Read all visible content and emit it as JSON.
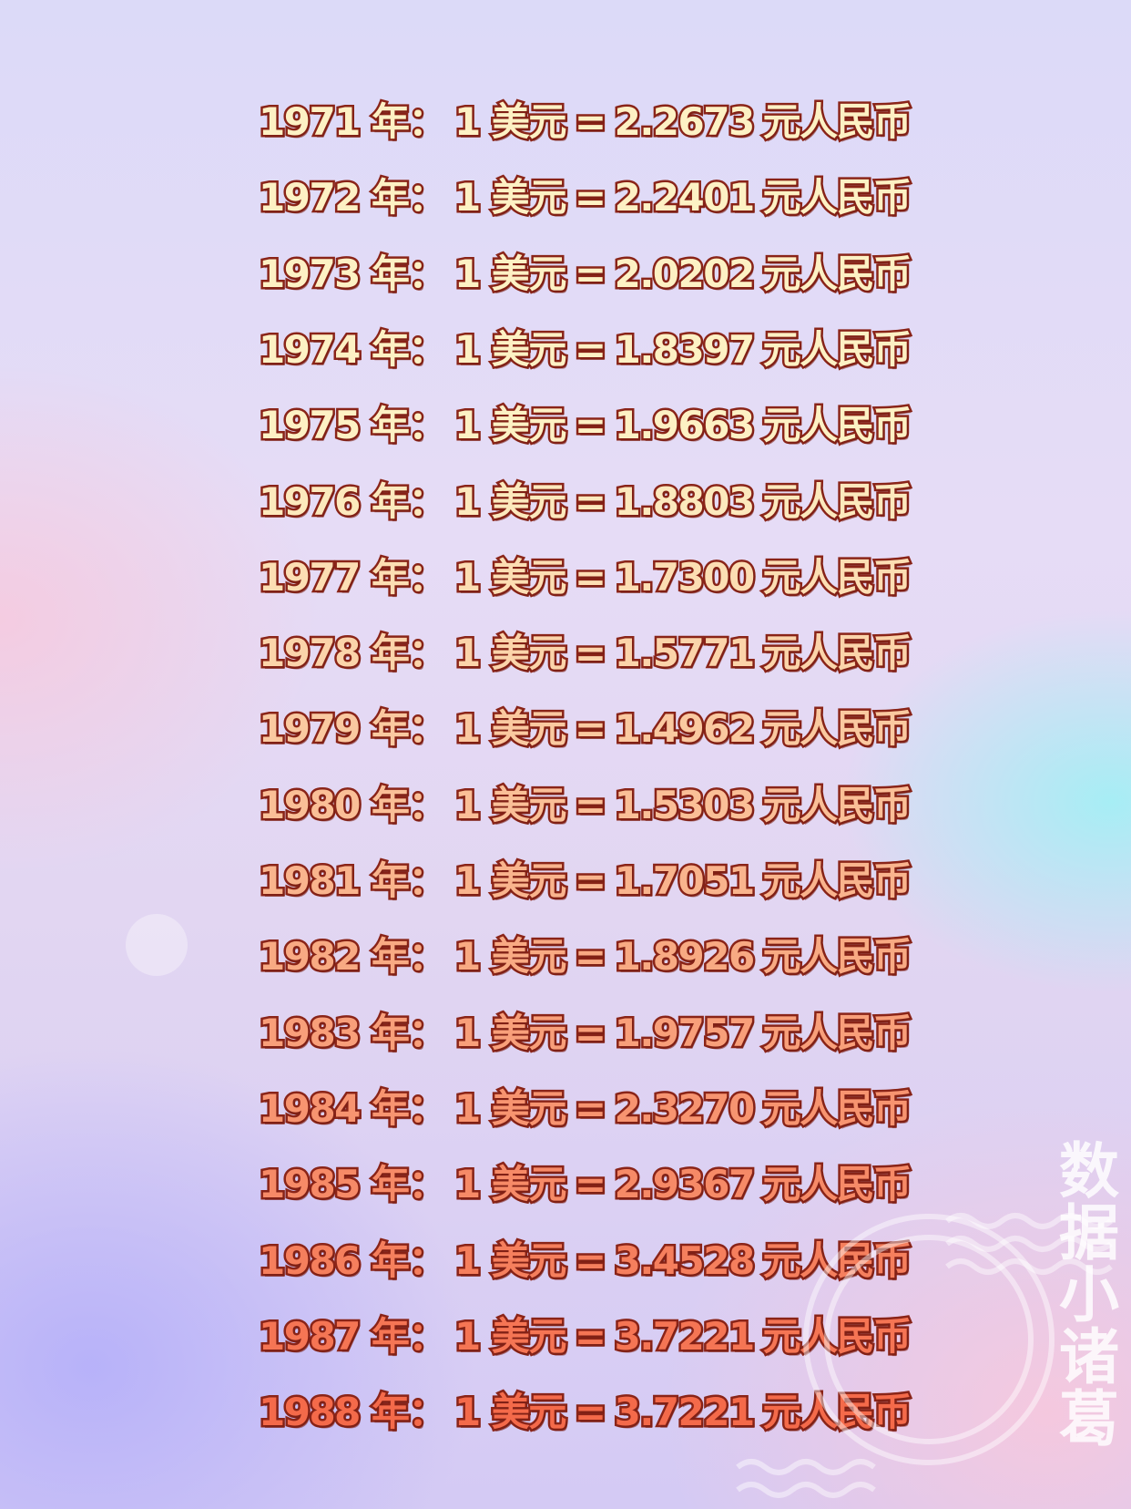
{
  "rows": [
    {
      "year": "1971 年：",
      "usd": "1 美元",
      "eq": "=",
      "rate": "2.2673",
      "unit": "元人民币"
    },
    {
      "year": "1972 年：",
      "usd": "1 美元",
      "eq": "=",
      "rate": "2.2401",
      "unit": "元人民币"
    },
    {
      "year": "1973 年：",
      "usd": "1 美元",
      "eq": "=",
      "rate": "2.0202",
      "unit": "元人民币"
    },
    {
      "year": "1974 年：",
      "usd": "1 美元",
      "eq": "=",
      "rate": "1.8397",
      "unit": "元人民币"
    },
    {
      "year": "1975 年：",
      "usd": "1 美元",
      "eq": "=",
      "rate": "1.9663",
      "unit": "元人民币"
    },
    {
      "year": "1976 年：",
      "usd": "1 美元",
      "eq": "=",
      "rate": "1.8803",
      "unit": "元人民币"
    },
    {
      "year": "1977 年：",
      "usd": "1 美元",
      "eq": "=",
      "rate": "1.7300",
      "unit": "元人民币"
    },
    {
      "year": "1978 年：",
      "usd": "1 美元",
      "eq": "=",
      "rate": "1.5771",
      "unit": "元人民币"
    },
    {
      "year": "1979 年：",
      "usd": "1 美元",
      "eq": "=",
      "rate": "1.4962",
      "unit": "元人民币"
    },
    {
      "year": "1980 年：",
      "usd": "1 美元",
      "eq": "=",
      "rate": "1.5303",
      "unit": "元人民币"
    },
    {
      "year": "1981 年：",
      "usd": "1 美元",
      "eq": "=",
      "rate": "1.7051",
      "unit": "元人民币"
    },
    {
      "year": "1982 年：",
      "usd": "1 美元",
      "eq": "=",
      "rate": "1.8926",
      "unit": "元人民币"
    },
    {
      "year": "1983 年：",
      "usd": "1 美元",
      "eq": "=",
      "rate": "1.9757",
      "unit": "元人民币"
    },
    {
      "year": "1984 年：",
      "usd": "1 美元",
      "eq": "=",
      "rate": "2.3270",
      "unit": "元人民币"
    },
    {
      "year": "1985 年：",
      "usd": "1 美元",
      "eq": "=",
      "rate": "2.9367",
      "unit": "元人民币"
    },
    {
      "year": "1986 年：",
      "usd": "1 美元",
      "eq": "=",
      "rate": "3.4528",
      "unit": "元人民币"
    },
    {
      "year": "1987 年：",
      "usd": "1 美元",
      "eq": "=",
      "rate": "3.7221",
      "unit": "元人民币"
    },
    {
      "year": "1988 年：",
      "usd": "1 美元",
      "eq": "=",
      "rate": "3.7221",
      "unit": "元人民币"
    }
  ],
  "colors": {
    "fill_top": "#fdf1c4",
    "fill_bottom": "#f46a4a",
    "stroke": "#8a2418"
  },
  "watermark": {
    "text": "数据小诸葛"
  }
}
